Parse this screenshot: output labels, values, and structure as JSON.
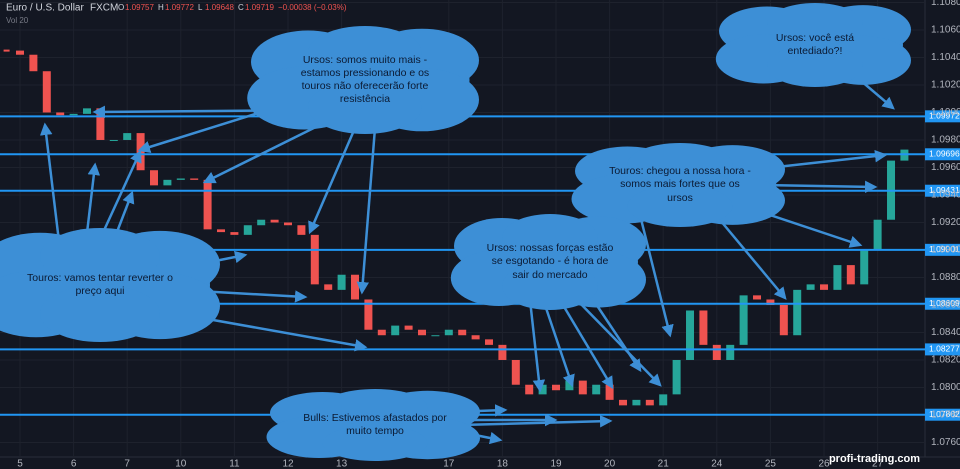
{
  "chart_data": {
    "type": "candlestick",
    "title": "Euro / U.S. Dollar",
    "source": "FXCM",
    "ohlc": [
      {
        "label": "O",
        "value": 1.09757
      },
      {
        "label": "H",
        "value": 1.09772
      },
      {
        "label": "L",
        "value": 1.09648
      },
      {
        "label": "C",
        "value": 1.09719
      }
    ],
    "change": "−0.00038 (−0.03%)",
    "volume_label": "Vol 20",
    "watermark": "profi-trading.com",
    "up_color": "#26a69a",
    "down_color": "#ef5350",
    "level_color": "#2196f3",
    "x": [
      -0.25,
      0,
      0.25,
      0.5,
      0.75,
      1,
      1.25,
      1.5,
      1.75,
      2,
      2.25,
      2.5,
      2.75,
      3,
      3.25,
      3.5,
      3.75,
      4,
      4.25,
      4.5,
      4.75,
      5,
      5.25,
      5.5,
      5.75,
      6,
      6.25,
      6.5,
      6.75,
      7,
      7.25,
      7.5,
      7.75,
      8,
      8.25,
      8.5,
      8.75,
      9,
      9.25,
      9.5,
      9.75,
      10,
      10.25,
      10.5,
      10.75,
      11,
      11.25,
      11.5,
      11.75,
      12,
      12.25,
      12.5,
      12.75,
      13,
      13.25,
      13.5,
      13.75,
      14,
      14.25,
      14.5,
      14.75,
      15,
      15.25,
      15.5,
      15.75,
      16,
      16.25,
      16.5
    ],
    "values": [
      1.1045,
      1.1042,
      1.103,
      1.1,
      1.0998,
      1.0999,
      1.1003,
      1.098,
      1.098,
      1.0985,
      1.0958,
      1.0947,
      1.0951,
      1.0952,
      1.0951,
      1.0915,
      1.0913,
      1.0911,
      1.0918,
      1.0922,
      1.092,
      1.0918,
      1.0911,
      1.0875,
      1.0871,
      1.0882,
      1.0864,
      1.0842,
      1.0838,
      1.0845,
      1.0842,
      1.0838,
      1.0838,
      1.0842,
      1.0838,
      1.0835,
      1.0831,
      1.082,
      1.0802,
      1.0795,
      1.0802,
      1.0798,
      1.0805,
      1.0795,
      1.0802,
      1.0791,
      1.0787,
      1.0791,
      1.0787,
      1.0795,
      1.082,
      1.0856,
      1.0831,
      1.082,
      1.0831,
      1.0867,
      1.0864,
      1.086,
      1.0838,
      1.0871,
      1.0875,
      1.0871,
      1.0889,
      1.0875,
      1.09,
      1.0922,
      1.0965,
      1.0973
    ],
    "xlim": [
      -0.373,
      16.884
    ],
    "ylim": [
      1.07509,
      1.10818
    ],
    "xticks": [
      {
        "value": 0,
        "label": "5"
      },
      {
        "value": 1,
        "label": "6"
      },
      {
        "value": 2,
        "label": "7"
      },
      {
        "value": 3,
        "label": "10"
      },
      {
        "value": 4,
        "label": "11"
      },
      {
        "value": 5,
        "label": "12"
      },
      {
        "value": 6,
        "label": "13"
      },
      {
        "value": 8,
        "label": "17"
      },
      {
        "value": 9,
        "label": "18"
      },
      {
        "value": 10,
        "label": "19"
      },
      {
        "value": 11,
        "label": "20"
      },
      {
        "value": 12,
        "label": "21"
      },
      {
        "value": 13,
        "label": "24"
      },
      {
        "value": 14,
        "label": "25"
      },
      {
        "value": 15,
        "label": "26"
      },
      {
        "value": 16,
        "label": "27"
      }
    ],
    "yticks": [
      {
        "value": 1.108,
        "label": "1.10800"
      },
      {
        "value": 1.106,
        "label": "1.10600"
      },
      {
        "value": 1.104,
        "label": "1.10400"
      },
      {
        "value": 1.102,
        "label": "1.10200"
      },
      {
        "value": 1.1,
        "label": "1.10000"
      },
      {
        "value": 1.098,
        "label": "1.09800"
      },
      {
        "value": 1.096,
        "label": "1.09600"
      },
      {
        "value": 1.094,
        "label": "1.09400"
      },
      {
        "value": 1.092,
        "label": "1.09200"
      },
      {
        "value": 1.09,
        "label": "1.09000"
      },
      {
        "value": 1.088,
        "label": "1.08800"
      },
      {
        "value": 1.086,
        "label": "1.08600"
      },
      {
        "value": 1.084,
        "label": "1.08400"
      },
      {
        "value": 1.082,
        "label": "1.08200"
      },
      {
        "value": 1.08,
        "label": "1.08000"
      },
      {
        "value": 1.078,
        "label": "1.07800"
      },
      {
        "value": 1.076,
        "label": "1.07600"
      }
    ],
    "levels": [
      1.09972,
      1.09696,
      1.09431,
      1.09001,
      1.08609,
      1.08277,
      1.07802
    ],
    "grid": true,
    "annotations": [
      "Ursos: somos muito mais - estamos pressionando e os touros não oferecerão forte resistência",
      "Ursos: você está entediado?!",
      "Touros: vamos tentar reverter o preço aqui",
      "Touros: chegou a nossa hora - somos mais fortes que os ursos",
      "Ursos: nossas forças estão se esgotando - é hora de sair do mercado",
      "Bulls: Estivemos afastados por muito tempo"
    ]
  }
}
